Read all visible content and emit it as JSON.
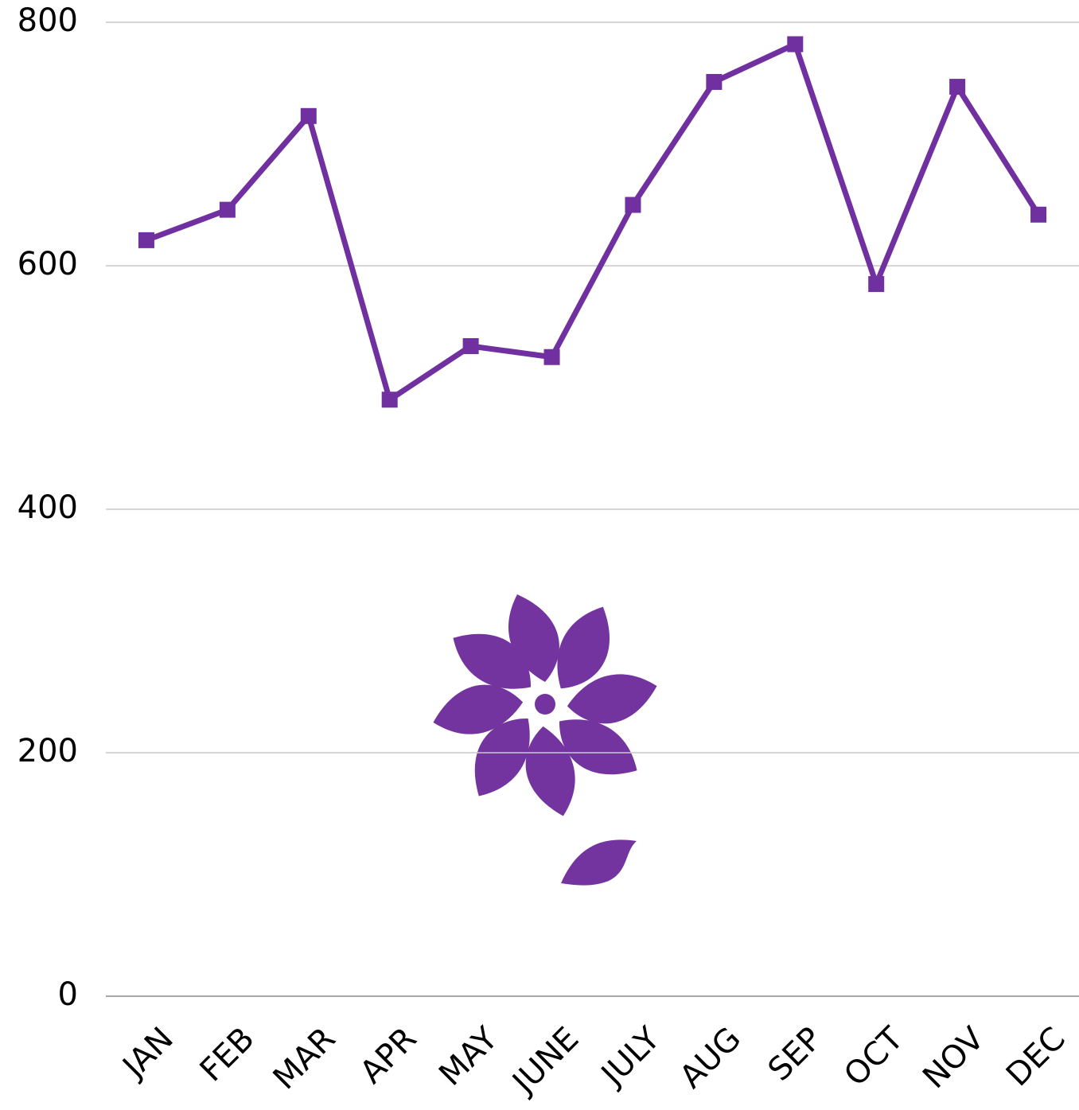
{
  "chart_data": {
    "type": "line",
    "categories": [
      "JAN",
      "FEB",
      "MAR",
      "APR",
      "MAY",
      "JUNE",
      "JULY",
      "AUG",
      "SEP",
      "OCT",
      "NOV",
      "DEC"
    ],
    "series": [
      {
        "color": "#7030a0",
        "values": [
          621,
          646,
          723,
          490,
          534,
          525,
          650,
          751,
          782,
          585,
          747,
          642
        ]
      }
    ],
    "ylim": [
      0,
      800
    ],
    "yticks": [
      0,
      200,
      400,
      600,
      800
    ],
    "grid": true
  }
}
